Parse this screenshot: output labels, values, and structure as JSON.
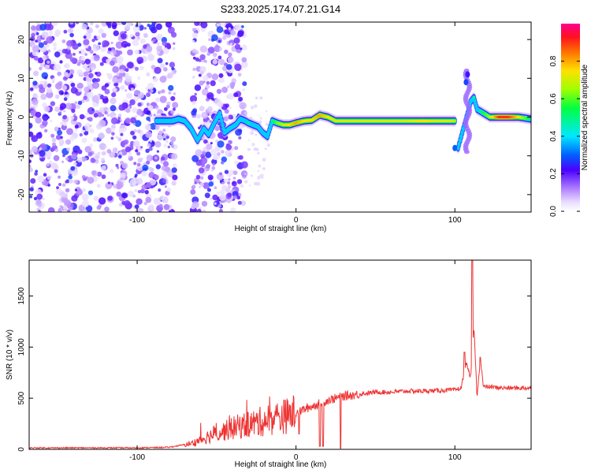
{
  "title": "S233.2025.174.07.21.G14",
  "chart_data": [
    {
      "type": "heatmap",
      "xlabel": "Height of straight line (km)",
      "ylabel": "Frequency (Hz)",
      "xlim": [
        -168,
        148
      ],
      "ylim": [
        -24.5,
        24.5
      ],
      "x_ticks": [
        -100,
        0,
        100
      ],
      "y_ticks": [
        -20,
        -10,
        0,
        10,
        20
      ],
      "colorbar": {
        "label": "Normalized spectral amplitude",
        "range": [
          0,
          1
        ],
        "ticks": [
          0.0,
          0.2,
          0.4,
          0.6,
          0.8
        ]
      },
      "noise_regions": [
        [
          -168,
          -76
        ],
        [
          -65,
          -32
        ]
      ],
      "ridge": {
        "x": [
          -88,
          -82,
          -78,
          -74,
          -70,
          -66,
          -62,
          -58,
          -55,
          -52,
          -48,
          -45,
          -42,
          -38,
          -35,
          -32,
          -30,
          -27,
          -24,
          -21,
          -18,
          -15,
          -12,
          -8,
          -4,
          0,
          5,
          10,
          15,
          20,
          25,
          30,
          40,
          50,
          60,
          70,
          80,
          90,
          98,
          100
        ],
        "y": [
          -1,
          -1,
          -1,
          -0.5,
          -1,
          -3,
          -6,
          -3,
          -4.5,
          -2,
          1,
          -4,
          -3,
          -2,
          -0.5,
          -1,
          -1.5,
          -2,
          -2.5,
          -4,
          -5,
          -1,
          -1.5,
          -2,
          -2,
          -1.5,
          -1,
          -0.8,
          0.5,
          0,
          -1,
          -1,
          -1,
          -1,
          -1,
          -1,
          -1,
          -1,
          -1,
          -1
        ],
        "amp": [
          0.45,
          0.45,
          0.45,
          0.4,
          0.4,
          0.35,
          0.3,
          0.25,
          0.25,
          0.2,
          0.2,
          0.2,
          0.2,
          0.2,
          0.35,
          0.45,
          0.5,
          0.45,
          0.4,
          0.4,
          0.35,
          0.5,
          0.6,
          0.7,
          0.75,
          0.8,
          0.75,
          0.75,
          0.8,
          0.75,
          0.7,
          0.7,
          0.7,
          0.7,
          0.7,
          0.7,
          0.75,
          0.7,
          0.7,
          0.65
        ]
      },
      "ridge2": {
        "x": [
          102,
          106,
          110,
          112,
          114,
          118,
          122,
          128,
          134,
          140,
          148
        ],
        "y": [
          -8,
          -2,
          4,
          5,
          2,
          1,
          0,
          0,
          0,
          0,
          -0.5
        ],
        "amp": [
          0.35,
          0.3,
          0.45,
          0.5,
          0.45,
          0.55,
          0.65,
          0.9,
          0.9,
          0.75,
          0.5
        ]
      },
      "vertical_feature": {
        "x": 108,
        "y_range": [
          -9,
          12
        ]
      }
    },
    {
      "type": "line",
      "xlabel": "Height of straight line (km)",
      "ylabel": "SNR (10 * v/v)",
      "xlim": [
        -168,
        148
      ],
      "ylim": [
        0,
        1850
      ],
      "x_ticks": [
        -100,
        0,
        100
      ],
      "y_ticks": [
        0,
        500,
        1000,
        1500
      ],
      "color": "#ee3333",
      "series": [
        {
          "x": [
            -168,
            -140,
            -120,
            -100,
            -80,
            -65,
            -55,
            -45,
            -35,
            -25,
            -15,
            -5,
            0,
            10,
            20,
            30,
            40,
            50,
            60,
            70,
            80,
            90,
            100,
            104,
            107,
            110,
            112,
            114,
            116,
            118,
            122,
            130,
            140,
            148
          ],
          "values": [
            15,
            15,
            15,
            15,
            20,
            60,
            130,
            180,
            230,
            260,
            300,
            330,
            360,
            420,
            480,
            520,
            540,
            560,
            560,
            570,
            570,
            575,
            580,
            600,
            850,
            700,
            1200,
            500,
            900,
            610,
            610,
            600,
            600,
            600
          ]
        }
      ],
      "spikes": [
        {
          "x": 111,
          "value": 1850
        },
        {
          "x": 106,
          "value": 950
        },
        {
          "x": 116,
          "value": 900
        }
      ],
      "dips": [
        {
          "x": 15,
          "value": 30
        },
        {
          "x": 17,
          "value": 30
        },
        {
          "x": 28,
          "value": 10
        },
        {
          "x": 2,
          "value": 150
        }
      ]
    }
  ]
}
